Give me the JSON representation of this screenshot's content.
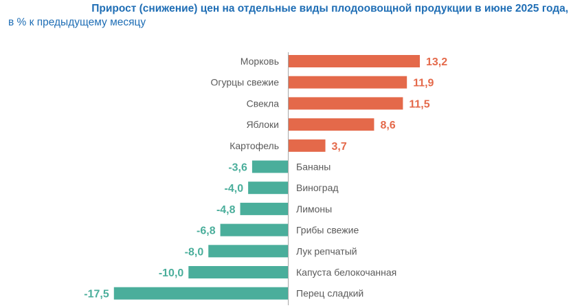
{
  "chart_data": {
    "type": "bar",
    "orientation": "horizontal",
    "title": "Прирост (снижение) цен на отдельные виды плодоовощной продукции в июне 2025 года,",
    "subtitle": "в % к предыдущему месяцу",
    "categories": [
      "Морковь",
      "Огурцы свежие",
      "Свекла",
      "Яблоки",
      "Картофель",
      "Бананы",
      "Виноград",
      "Лимоны",
      "Грибы свежие",
      "Лук репчатый",
      "Капуста белокочанная",
      "Перец сладкий"
    ],
    "values": [
      13.2,
      11.9,
      11.5,
      8.6,
      3.7,
      -3.6,
      -4.0,
      -4.8,
      -6.8,
      -8.0,
      -10.0,
      -17.5
    ],
    "value_labels": [
      "13,2",
      "11,9",
      "11,5",
      "8,6",
      "3,7",
      "-3,6",
      "-4,0",
      "-4,8",
      "-6,8",
      "-8,0",
      "-10,0",
      "-17,5"
    ],
    "xlim": [
      -17.5,
      13.2
    ],
    "grid": false,
    "legend": "none",
    "colors": {
      "positive": "#E4694A",
      "negative": "#4AAE9B",
      "title": "#1F6EB5",
      "axis": "#A6A6A6"
    }
  }
}
